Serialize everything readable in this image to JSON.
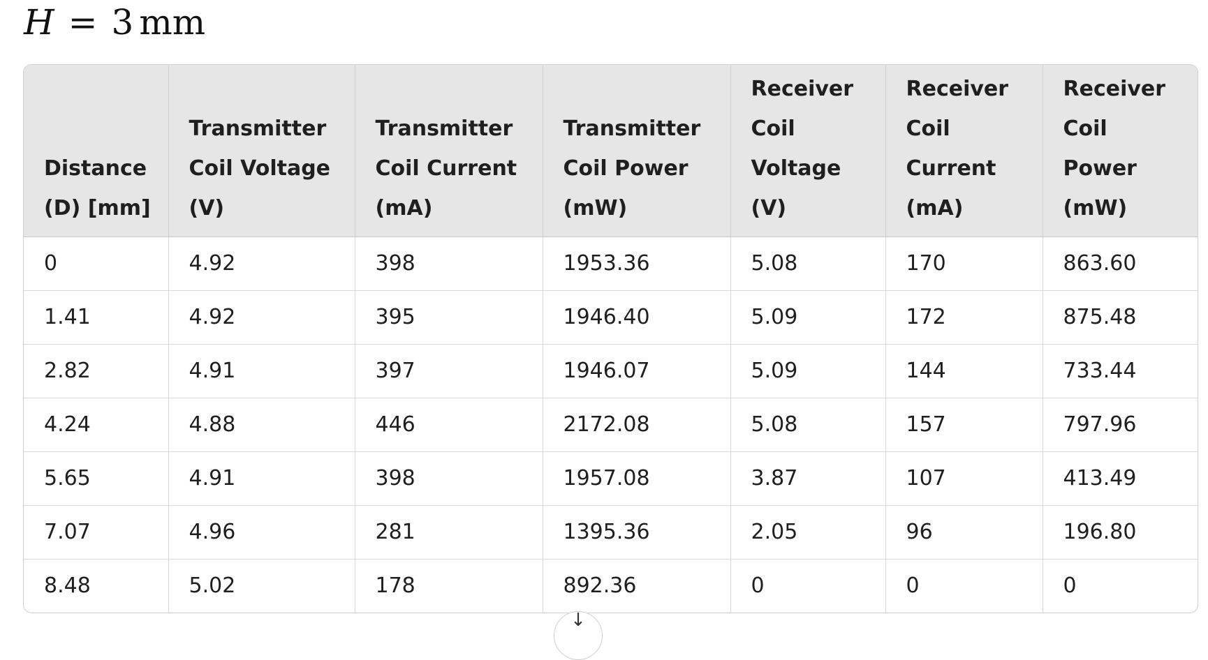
{
  "heading": {
    "variable": "H",
    "equals": "=",
    "value": "3",
    "unit": "mm"
  },
  "table": {
    "headers": [
      [
        "Distance",
        "(D) [mm]"
      ],
      [
        "Transmitter",
        "Coil Voltage",
        "(V)"
      ],
      [
        "Transmitter",
        "Coil Current",
        "(mA)"
      ],
      [
        "Transmitter",
        "Coil Power",
        "(mW)"
      ],
      [
        "Receiver",
        "Coil",
        "Voltage",
        "(V)"
      ],
      [
        "Receiver",
        "Coil",
        "Current",
        "(mA)"
      ],
      [
        "Receiver",
        "Coil Power",
        "(mW)"
      ]
    ],
    "rows": [
      [
        "0",
        "4.92",
        "398",
        "1953.36",
        "5.08",
        "170",
        "863.60"
      ],
      [
        "1.41",
        "4.92",
        "395",
        "1946.40",
        "5.09",
        "172",
        "875.48"
      ],
      [
        "2.82",
        "4.91",
        "397",
        "1946.07",
        "5.09",
        "144",
        "733.44"
      ],
      [
        "4.24",
        "4.88",
        "446",
        "2172.08",
        "5.08",
        "157",
        "797.96"
      ],
      [
        "5.65",
        "4.91",
        "398",
        "1957.08",
        "3.87",
        "107",
        "413.49"
      ],
      [
        "7.07",
        "4.96",
        "281",
        "1395.36",
        "2.05",
        "96",
        "196.80"
      ],
      [
        "8.48",
        "5.02",
        "178",
        "892.36",
        "0",
        "0",
        "0"
      ]
    ]
  },
  "scroll_button": {
    "glyph": "↓",
    "icon": "arrow-down-icon"
  }
}
